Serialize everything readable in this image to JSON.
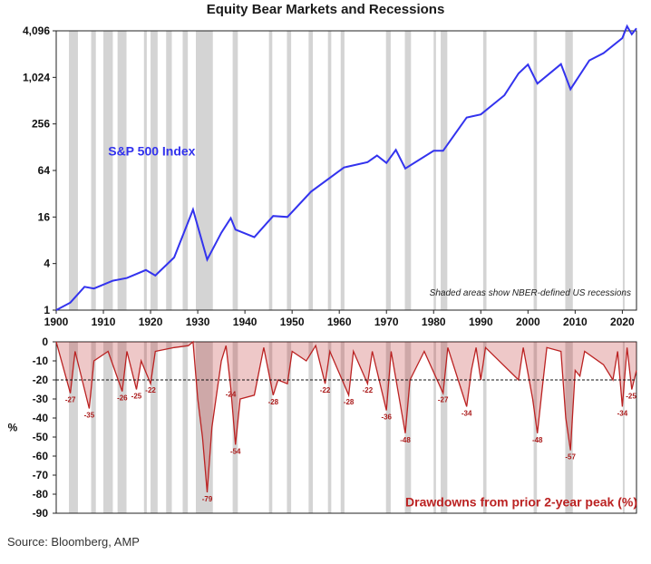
{
  "title": "Equity Bear Markets and Recessions",
  "source": "Source: Bloomberg, AMP",
  "chart_data": [
    {
      "type": "line",
      "series": [
        {
          "name": "S&P 500 Index",
          "color": "#3333ee",
          "points": [
            [
              1900,
              1.0
            ],
            [
              1903,
              1.25
            ],
            [
              1906,
              2.0
            ],
            [
              1908,
              1.9
            ],
            [
              1912,
              2.4
            ],
            [
              1915,
              2.6
            ],
            [
              1919,
              3.3
            ],
            [
              1921,
              2.8
            ],
            [
              1925,
              4.8
            ],
            [
              1929,
              20.0
            ],
            [
              1932,
              4.5
            ],
            [
              1935,
              10.0
            ],
            [
              1937,
              15.5
            ],
            [
              1938,
              11.0
            ],
            [
              1942,
              8.8
            ],
            [
              1946,
              16.5
            ],
            [
              1949,
              16.0
            ],
            [
              1954,
              34.0
            ],
            [
              1961,
              70.0
            ],
            [
              1966,
              82.0
            ],
            [
              1968,
              100.0
            ],
            [
              1970,
              80.0
            ],
            [
              1972,
              118.0
            ],
            [
              1974,
              68.0
            ],
            [
              1980,
              115.0
            ],
            [
              1982,
              115.0
            ],
            [
              1987,
              310.0
            ],
            [
              1990,
              340.0
            ],
            [
              1995,
              600.0
            ],
            [
              1998,
              1150.0
            ],
            [
              2000,
              1500.0
            ],
            [
              2002,
              850.0
            ],
            [
              2007,
              1520.0
            ],
            [
              2009,
              720.0
            ],
            [
              2013,
              1700.0
            ],
            [
              2016,
              2100.0
            ],
            [
              2020,
              3300.0
            ],
            [
              2021,
              4700.0
            ],
            [
              2022,
              3700.0
            ],
            [
              2023,
              4400.0
            ]
          ]
        }
      ],
      "series_label": "S&P 500 Index",
      "annotation": "Shaded areas show NBER-defined US recessions",
      "y_scale": "log2",
      "ylim": [
        1,
        4096
      ],
      "yticks": [
        "1",
        "4",
        "16",
        "64",
        "256",
        "1,024",
        "4,096"
      ],
      "ytick_values": [
        1,
        4,
        16,
        64,
        256,
        1024,
        4096
      ],
      "xlim": [
        1900,
        2023
      ],
      "xticks": [
        1900,
        1910,
        1920,
        1930,
        1940,
        1950,
        1960,
        1970,
        1980,
        1990,
        2000,
        2010,
        2020
      ],
      "recessions": [
        [
          1902.7,
          1904.6
        ],
        [
          1907.4,
          1908.4
        ],
        [
          1910.0,
          1912.0
        ],
        [
          1913.0,
          1914.9
        ],
        [
          1918.6,
          1919.2
        ],
        [
          1920.0,
          1921.5
        ],
        [
          1923.3,
          1924.5
        ],
        [
          1926.8,
          1927.9
        ],
        [
          1929.6,
          1933.2
        ],
        [
          1937.4,
          1938.5
        ],
        [
          1945.1,
          1945.8
        ],
        [
          1948.9,
          1949.8
        ],
        [
          1953.5,
          1954.4
        ],
        [
          1957.6,
          1958.3
        ],
        [
          1960.3,
          1961.1
        ],
        [
          1969.9,
          1970.9
        ],
        [
          1973.9,
          1975.2
        ],
        [
          1980.0,
          1980.5
        ],
        [
          1981.5,
          1982.9
        ],
        [
          1990.5,
          1991.2
        ],
        [
          2001.2,
          2001.9
        ],
        [
          2007.9,
          2009.5
        ],
        [
          2020.1,
          2020.4
        ]
      ],
      "grid": false
    },
    {
      "type": "area",
      "series": [
        {
          "name": "Drawdowns from prior 2-year peak (%)",
          "color": "#bb2222",
          "points": [
            [
              1900,
              0
            ],
            [
              1903,
              -27
            ],
            [
              1904,
              -5
            ],
            [
              1907,
              -35
            ],
            [
              1908,
              -10
            ],
            [
              1911,
              -5
            ],
            [
              1914,
              -26
            ],
            [
              1915,
              -5
            ],
            [
              1917,
              -25
            ],
            [
              1918,
              -10
            ],
            [
              1920,
              -22
            ],
            [
              1921,
              -5
            ],
            [
              1925,
              -3
            ],
            [
              1928,
              -2
            ],
            [
              1929,
              0
            ],
            [
              1930,
              -30
            ],
            [
              1931,
              -50
            ],
            [
              1932,
              -79
            ],
            [
              1933,
              -45
            ],
            [
              1935,
              -10
            ],
            [
              1936,
              -2
            ],
            [
              1937,
              -24
            ],
            [
              1938,
              -54
            ],
            [
              1939,
              -30
            ],
            [
              1942,
              -28
            ],
            [
              1944,
              -3
            ],
            [
              1946,
              -28
            ],
            [
              1947,
              -20
            ],
            [
              1949,
              -22
            ],
            [
              1950,
              -5
            ],
            [
              1953,
              -10
            ],
            [
              1955,
              -2
            ],
            [
              1957,
              -22
            ],
            [
              1958,
              -5
            ],
            [
              1962,
              -28
            ],
            [
              1963,
              -5
            ],
            [
              1966,
              -22
            ],
            [
              1967,
              -5
            ],
            [
              1970,
              -36
            ],
            [
              1971,
              -5
            ],
            [
              1974,
              -48
            ],
            [
              1975,
              -20
            ],
            [
              1978,
              -5
            ],
            [
              1982,
              -27
            ],
            [
              1983,
              -3
            ],
            [
              1987,
              -34
            ],
            [
              1988,
              -15
            ],
            [
              1989,
              -3
            ],
            [
              1990,
              -20
            ],
            [
              1991,
              -3
            ],
            [
              1998,
              -20
            ],
            [
              1999,
              -3
            ],
            [
              2001,
              -30
            ],
            [
              2002,
              -48
            ],
            [
              2003,
              -25
            ],
            [
              2004,
              -3
            ],
            [
              2007,
              -5
            ],
            [
              2008,
              -40
            ],
            [
              2009,
              -57
            ],
            [
              2010,
              -15
            ],
            [
              2011,
              -18
            ],
            [
              2012,
              -5
            ],
            [
              2016,
              -12
            ],
            [
              2018,
              -20
            ],
            [
              2019,
              -5
            ],
            [
              2020,
              -34
            ],
            [
              2021,
              -3
            ],
            [
              2022,
              -25
            ],
            [
              2023,
              -15
            ]
          ]
        }
      ],
      "series_label": "Drawdowns from prior 2-year peak (%)",
      "ylabel": "%",
      "ylim": [
        -90,
        0
      ],
      "yticks": [
        0,
        -10,
        -20,
        -30,
        -40,
        -50,
        -60,
        -70,
        -80,
        -90
      ],
      "reference_line": -20,
      "data_labels": [
        {
          "x": 1903,
          "y": -27,
          "text": "-27"
        },
        {
          "x": 1907,
          "y": -35,
          "text": "-35"
        },
        {
          "x": 1914,
          "y": -26,
          "text": "-26"
        },
        {
          "x": 1917,
          "y": -25,
          "text": "-25"
        },
        {
          "x": 1920,
          "y": -22,
          "text": "-22"
        },
        {
          "x": 1932,
          "y": -79,
          "text": "-79"
        },
        {
          "x": 1937,
          "y": -24,
          "text": "-24"
        },
        {
          "x": 1938,
          "y": -54,
          "text": "-54"
        },
        {
          "x": 1946,
          "y": -28,
          "text": "-28"
        },
        {
          "x": 1957,
          "y": -22,
          "text": "-22"
        },
        {
          "x": 1962,
          "y": -28,
          "text": "-28"
        },
        {
          "x": 1966,
          "y": -22,
          "text": "-22"
        },
        {
          "x": 1970,
          "y": -36,
          "text": "-36"
        },
        {
          "x": 1974,
          "y": -48,
          "text": "-48"
        },
        {
          "x": 1982,
          "y": -27,
          "text": "-27"
        },
        {
          "x": 1987,
          "y": -34,
          "text": "-34"
        },
        {
          "x": 2002,
          "y": -48,
          "text": "-48"
        },
        {
          "x": 2009,
          "y": -57,
          "text": "-57"
        },
        {
          "x": 2020,
          "y": -34,
          "text": "-34"
        },
        {
          "x": 2022,
          "y": -25,
          "text": "-25"
        }
      ]
    }
  ]
}
